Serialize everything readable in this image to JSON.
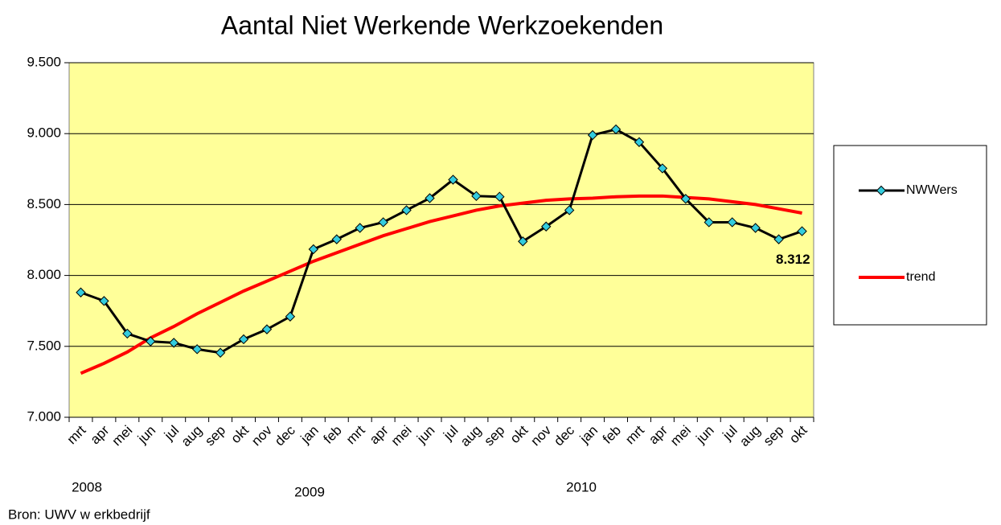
{
  "chart_data": {
    "type": "line",
    "title": "Aantal Niet Werkende Werkzoekenden",
    "categories": [
      "mrt",
      "apr",
      "mei",
      "jun",
      "jul",
      "aug",
      "sep",
      "okt",
      "nov",
      "dec",
      "jan",
      "feb",
      "mrt",
      "apr",
      "mei",
      "jun",
      "jul",
      "aug",
      "sep",
      "okt",
      "nov",
      "dec",
      "jan",
      "feb",
      "mrt",
      "apr",
      "mei",
      "jun",
      "jul",
      "aug",
      "sep",
      "okt"
    ],
    "year_labels": [
      "2008",
      "2009",
      "2010"
    ],
    "series": [
      {
        "name": "NWWers",
        "color": "#000000",
        "marker_color": "#33ccdd",
        "values": [
          7880,
          7820,
          7590,
          7535,
          7525,
          7480,
          7455,
          7550,
          7620,
          7710,
          8185,
          8255,
          8335,
          8375,
          8460,
          8545,
          8675,
          8560,
          8555,
          8240,
          8345,
          8460,
          8990,
          9030,
          8940,
          8755,
          8540,
          8375,
          8375,
          8335,
          8255,
          8312
        ],
        "value_labels": [
          null,
          null,
          null,
          null,
          null,
          null,
          null,
          null,
          null,
          null,
          null,
          null,
          null,
          null,
          null,
          null,
          null,
          null,
          null,
          null,
          null,
          null,
          null,
          null,
          null,
          null,
          null,
          null,
          null,
          null,
          null,
          "8.312"
        ]
      },
      {
        "name": "trend",
        "color": "#ff0000",
        "values": [
          7310,
          7380,
          7460,
          7560,
          7640,
          7730,
          7810,
          7890,
          7960,
          8030,
          8100,
          8160,
          8220,
          8280,
          8330,
          8380,
          8420,
          8460,
          8490,
          8510,
          8530,
          8540,
          8545,
          8555,
          8560,
          8560,
          8550,
          8540,
          8520,
          8500,
          8470,
          8440
        ]
      }
    ],
    "ylim": [
      7000,
      9500
    ],
    "yticks": [
      {
        "value": 7000,
        "label": "7.000"
      },
      {
        "value": 7500,
        "label": "7.500"
      },
      {
        "value": 8000,
        "label": "8.000"
      },
      {
        "value": 8500,
        "label": "8.500"
      },
      {
        "value": 9000,
        "label": "9.000"
      },
      {
        "value": 9500,
        "label": "9.500"
      }
    ],
    "grid": true,
    "plot_background": "#ffff99",
    "legend": "right",
    "source": "Bron: UWV w erkbedrijf"
  }
}
